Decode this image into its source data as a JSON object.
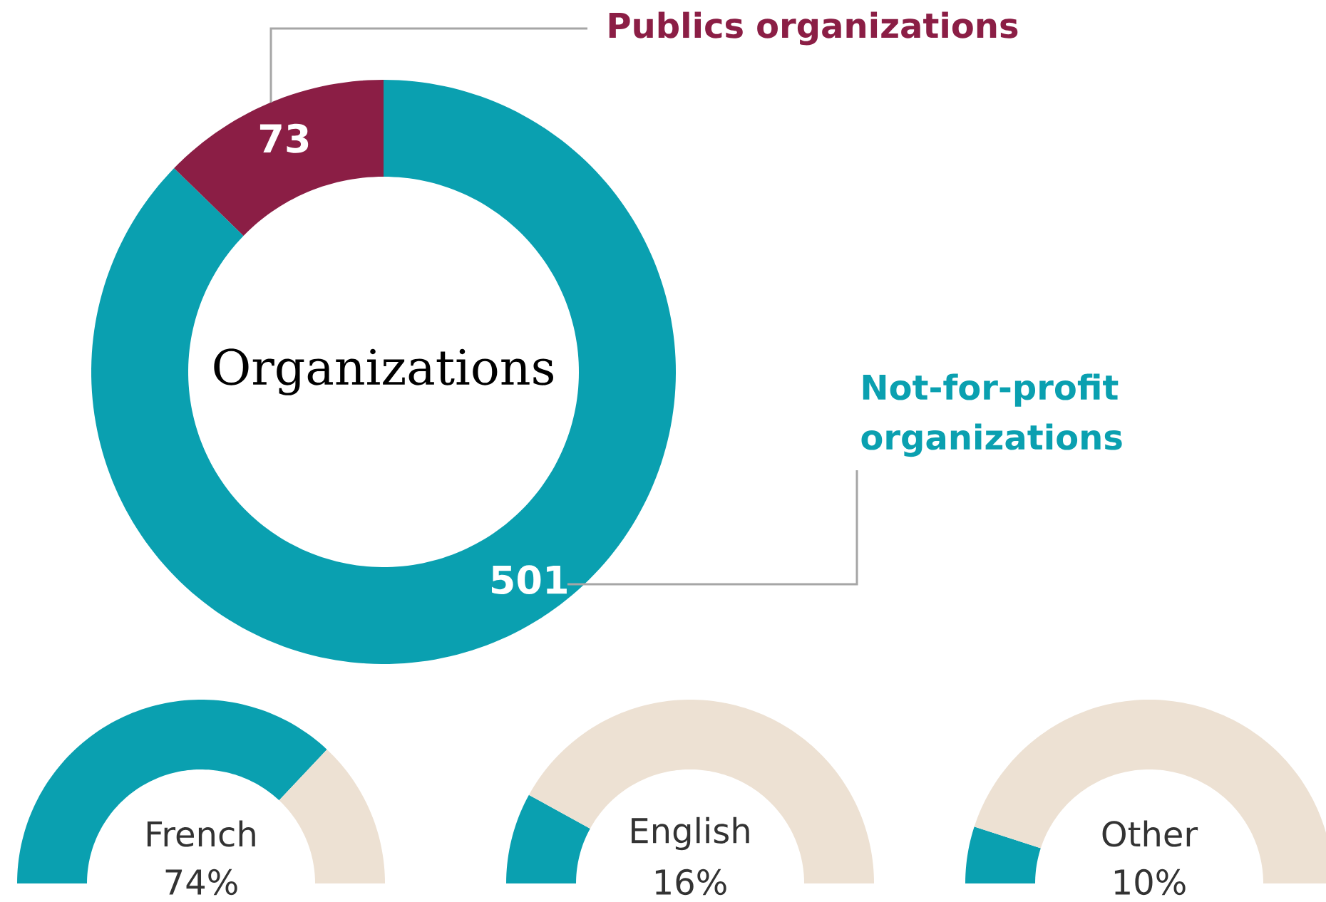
{
  "chart_data": [
    {
      "type": "donut",
      "title": "Organizations",
      "categories": [
        "Not-for-profit organizations",
        "Publics organizations"
      ],
      "values": [
        501,
        73
      ],
      "colors": [
        "#0aa0b0",
        "#8b1e45"
      ],
      "data_labels": true
    },
    {
      "type": "donut",
      "title": "French",
      "categories": [
        null,
        null
      ],
      "values": [
        74,
        26
      ],
      "colors": [
        "#0aa0b0",
        "#ede1d3"
      ],
      "subtitle": "74%"
    },
    {
      "type": "donut",
      "title": "English",
      "categories": [
        null,
        null
      ],
      "values": [
        16,
        84
      ],
      "colors": [
        "#0aa0b0",
        "#ede1d3"
      ],
      "subtitle": "16%"
    },
    {
      "type": "donut",
      "title": "Other",
      "categories": [
        null,
        null
      ],
      "values": [
        10,
        90
      ],
      "colors": [
        "#0aa0b0",
        "#ede1d3"
      ],
      "subtitle": "10%"
    }
  ]
}
